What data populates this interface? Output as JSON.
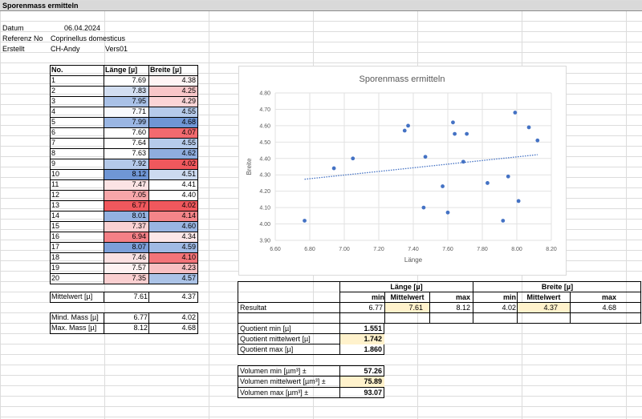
{
  "sheet_title": "Sporenmass ermitteln",
  "info": {
    "datum_label": "Datum",
    "datum_value": "06.04.2024",
    "referenz_label": "Referenz No",
    "referenz_value": "Coprinellus domesticus",
    "erstellt_label": "Erstellt",
    "erstellt_value": "CH-Andy",
    "version": "Vers01"
  },
  "table": {
    "headers": [
      "No.",
      "Länge  [µ]",
      "Breite [µ]"
    ],
    "rows": [
      {
        "no": "1",
        "laenge": "7.69",
        "breite": "4.38",
        "lc": "#ffffff",
        "bc": "#fff5f5"
      },
      {
        "no": "2",
        "laenge": "7.83",
        "breite": "4.25",
        "lc": "#d2def1",
        "bc": "#f8c6c8"
      },
      {
        "no": "3",
        "laenge": "7.95",
        "breite": "4.29",
        "lc": "#a9c1e7",
        "bc": "#fbd4d6"
      },
      {
        "no": "4",
        "laenge": "7.71",
        "breite": "4.55",
        "lc": "#f7f9fd",
        "bc": "#b6cbeb"
      },
      {
        "no": "5",
        "laenge": "7.99",
        "breite": "4.68",
        "lc": "#9ab6e3",
        "bc": "#6f96d5"
      },
      {
        "no": "6",
        "laenge": "7.60",
        "breite": "4.07",
        "lc": "#ffffff",
        "bc": "#f26a6f"
      },
      {
        "no": "7",
        "laenge": "7.64",
        "breite": "4.55",
        "lc": "#ffffff",
        "bc": "#b6cbeb"
      },
      {
        "no": "8",
        "laenge": "7.63",
        "breite": "4.62",
        "lc": "#ffffff",
        "bc": "#8fadde"
      },
      {
        "no": "9",
        "laenge": "7.92",
        "breite": "4.02",
        "lc": "#b4c9e9",
        "bc": "#f0585d"
      },
      {
        "no": "10",
        "laenge": "8.12",
        "breite": "4.51",
        "lc": "#6f96d5",
        "bc": "#ccdaf0"
      },
      {
        "no": "11",
        "laenge": "7.47",
        "breite": "4.41",
        "lc": "#fbe3e4",
        "bc": "#ffffff"
      },
      {
        "no": "12",
        "laenge": "7.05",
        "breite": "4.40",
        "lc": "#f7a6a9",
        "bc": "#ffffff"
      },
      {
        "no": "13",
        "laenge": "6.77",
        "breite": "4.02",
        "lc": "#f0585d",
        "bc": "#f0585d"
      },
      {
        "no": "14",
        "laenge": "8.01",
        "breite": "4.14",
        "lc": "#93b1e0",
        "bc": "#f48589"
      },
      {
        "no": "15",
        "laenge": "7.37",
        "breite": "4.60",
        "lc": "#fad1d2",
        "bc": "#99b5e2"
      },
      {
        "no": "16",
        "laenge": "6.94",
        "breite": "4.34",
        "lc": "#f48086",
        "bc": "#fde7e8"
      },
      {
        "no": "17",
        "laenge": "8.07",
        "breite": "4.59",
        "lc": "#7c9fd9",
        "bc": "#a0bae4"
      },
      {
        "no": "18",
        "laenge": "7.46",
        "breite": "4.10",
        "lc": "#fbe1e2",
        "bc": "#f37479"
      },
      {
        "no": "19",
        "laenge": "7.57",
        "breite": "4.23",
        "lc": "#fef3f3",
        "bc": "#f8c0c2"
      },
      {
        "no": "20",
        "laenge": "7.35",
        "breite": "4.57",
        "lc": "#facfd0",
        "bc": "#abc3e7"
      }
    ]
  },
  "summary": {
    "mittelwert_label": "Mittelwert  [µ]",
    "mittelwert_l": "7.61",
    "mittelwert_b": "4.37",
    "mind_label": "Mind. Mass  [µ]",
    "mind_l": "6.77",
    "mind_b": "4.02",
    "max_label": "Max. Mass  [µ]",
    "max_l": "8.12",
    "max_b": "4.68"
  },
  "result": {
    "laenge_header": "Länge  [µ]",
    "breite_header": "Breite [µ]",
    "col_min": "min",
    "col_mittel": "Mittelwert",
    "col_max": "max",
    "row_label": "Resultat",
    "l_min": "6.77",
    "l_mittel": "7.61",
    "l_max": "8.12",
    "b_min": "4.02",
    "b_mittel": "4.37",
    "b_max": "4.68"
  },
  "quotient": {
    "min_label": "Quotient min  [µ]",
    "min_value": "1.551",
    "mittel_label": "Quotient mittelwert [µ]",
    "mittel_value": "1.742",
    "max_label": "Quotient max  [µ]",
    "max_value": "1.860"
  },
  "volumen": {
    "min_label": "Volumen min [µm³] ±",
    "min_value": "57.26",
    "mittel_label": "Volumen mittelwert [µm³] ±",
    "mittel_value": "75.89",
    "max_label": "Volumen max [µm³] ±",
    "max_value": "93.07"
  },
  "colors": {
    "point": "#4472c4",
    "tan": "#fff2cc",
    "red": "#f0585d",
    "blue": "#6f96d5"
  },
  "chart_data": {
    "type": "scatter",
    "title": "Sporenmass ermitteln",
    "xlabel": "Länge",
    "ylabel": "Breite",
    "xlim": [
      6.6,
      8.2
    ],
    "ylim": [
      3.9,
      4.8
    ],
    "xticks": [
      "6.60",
      "6.80",
      "7.00",
      "7.20",
      "7.40",
      "7.60",
      "7.80",
      "8.00",
      "8.20"
    ],
    "yticks": [
      "3.90",
      "4.00",
      "4.10",
      "4.20",
      "4.30",
      "4.40",
      "4.50",
      "4.60",
      "4.70",
      "4.80"
    ],
    "x": [
      7.69,
      7.83,
      7.95,
      7.71,
      7.99,
      7.6,
      7.64,
      7.63,
      7.92,
      8.12,
      7.47,
      7.05,
      6.77,
      8.01,
      7.37,
      6.94,
      8.07,
      7.46,
      7.57,
      7.35
    ],
    "y": [
      4.38,
      4.25,
      4.29,
      4.55,
      4.68,
      4.07,
      4.55,
      4.62,
      4.02,
      4.51,
      4.41,
      4.4,
      4.02,
      4.14,
      4.6,
      4.34,
      4.59,
      4.1,
      4.23,
      4.57
    ],
    "trendline": {
      "type": "linear",
      "dashed": true
    },
    "grid": true
  }
}
